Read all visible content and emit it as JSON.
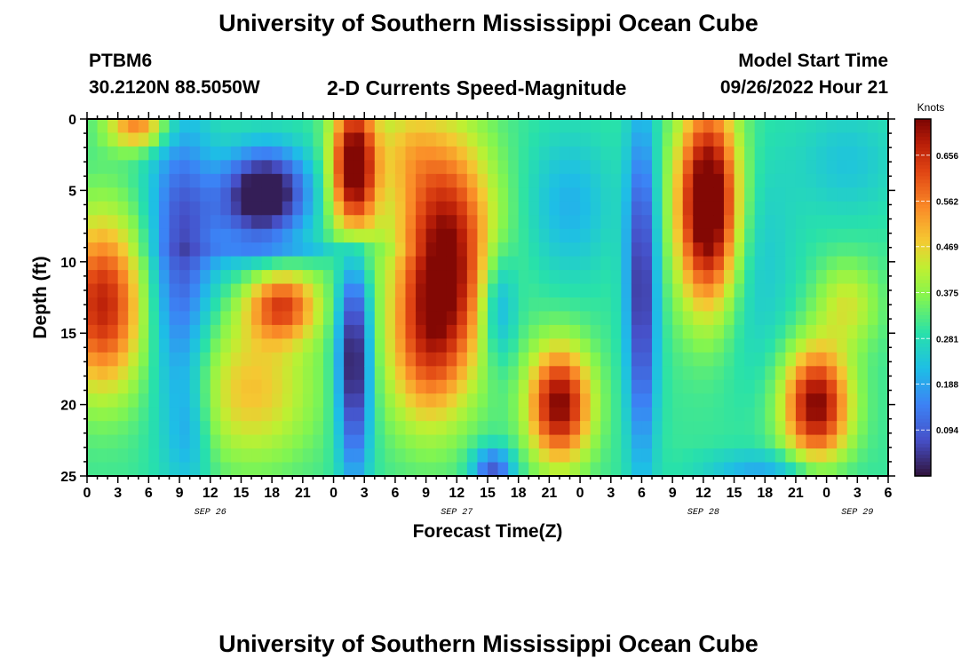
{
  "header": {
    "title": "University of Southern Mississippi Ocean Cube",
    "station": "PTBM6",
    "coords": "30.2120N  88.5050W",
    "subtitle": "2-D Currents Speed-Magnitude",
    "model_label": "Model Start Time",
    "model_time": "09/26/2022 Hour 21"
  },
  "footer": {
    "title": "University of Southern Mississippi Ocean Cube"
  },
  "chart_data": {
    "type": "heatmap",
    "title": "2-D Currents Speed-Magnitude",
    "xlabel": "Forecast Time(Z)",
    "ylabel": "Depth (ft)",
    "x_range_hours": [
      0,
      78
    ],
    "y_range": [
      0,
      25
    ],
    "y_ticks": [
      0,
      5,
      10,
      15,
      20,
      25
    ],
    "x_tick_labels": [
      "0",
      "3",
      "6",
      "9",
      "12",
      "15",
      "18",
      "21",
      "0",
      "3",
      "6",
      "9",
      "12",
      "15",
      "18",
      "21",
      "0",
      "3",
      "6",
      "9",
      "12",
      "15",
      "18",
      "21",
      "0",
      "3",
      "6"
    ],
    "date_labels": [
      {
        "label": "SEP 26",
        "hour": 12
      },
      {
        "label": "SEP 27",
        "hour": 36
      },
      {
        "label": "SEP 28",
        "hour": 60
      },
      {
        "label": "SEP 29",
        "hour": 75
      }
    ],
    "colorbar": {
      "title": "Knots",
      "min": 0.0,
      "max": 0.73,
      "ticks": [
        "0.094",
        "0.188",
        "0.281",
        "0.375",
        "0.469",
        "0.562",
        "0.656"
      ],
      "colormap": "turbo"
    },
    "grid": false
  }
}
